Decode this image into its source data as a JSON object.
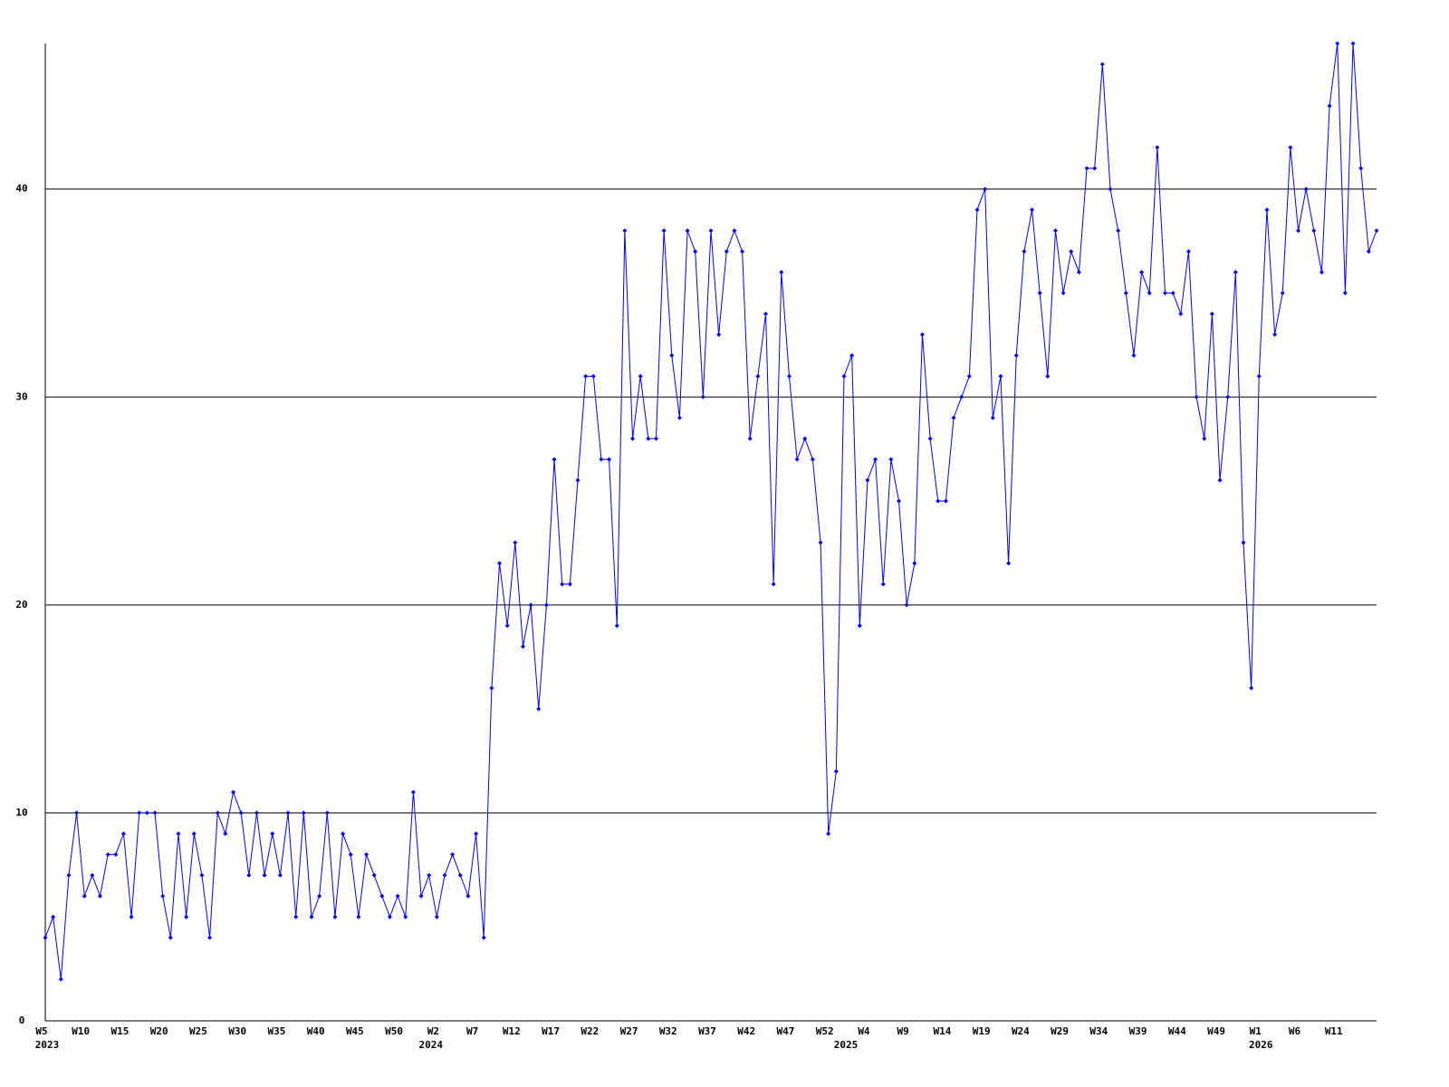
{
  "chart_data": {
    "type": "line",
    "categories": [
      "W5",
      null,
      null,
      null,
      null,
      "W10",
      null,
      null,
      null,
      null,
      "W15",
      null,
      null,
      null,
      null,
      "W20",
      null,
      null,
      null,
      null,
      "W25",
      null,
      null,
      null,
      null,
      "W30",
      null,
      null,
      null,
      null,
      "W35",
      null,
      null,
      null,
      null,
      "W40",
      null,
      null,
      null,
      null,
      "W45",
      null,
      null,
      null,
      null,
      "W50",
      null,
      null,
      null,
      null,
      "W2",
      null,
      null,
      null,
      null,
      "W7",
      null,
      null,
      null,
      null,
      "W12",
      null,
      null,
      null,
      null,
      "W17",
      null,
      null,
      null,
      null,
      "W22",
      null,
      null,
      null,
      null,
      "W27",
      null,
      null,
      null,
      null,
      "W32",
      null,
      null,
      null,
      null,
      "W37",
      null,
      null,
      null,
      null,
      "W42",
      null,
      null,
      null,
      null,
      "W47",
      null,
      null,
      null,
      null,
      "W52",
      null,
      null,
      null,
      null,
      "W4",
      null,
      null,
      null,
      null,
      "W9",
      null,
      null,
      null,
      null,
      "W14",
      null,
      null,
      null,
      null,
      "W19",
      null,
      null,
      null,
      null,
      "W24",
      null,
      null,
      null,
      null,
      "W29",
      null,
      null,
      null,
      null,
      "W34",
      null,
      null,
      null,
      null,
      "W39",
      null,
      null,
      null,
      null,
      "W44",
      null,
      null,
      null,
      null,
      "W49",
      null,
      null,
      null,
      null,
      "W1",
      null,
      null,
      null,
      null,
      "W6",
      null,
      null,
      null,
      null,
      "W11",
      null,
      null,
      null,
      null,
      null
    ],
    "years": [
      "2023",
      null,
      null,
      null,
      null,
      null,
      null,
      null,
      null,
      null,
      null,
      null,
      null,
      null,
      null,
      null,
      null,
      null,
      null,
      null,
      null,
      null,
      null,
      null,
      null,
      null,
      null,
      null,
      null,
      null,
      null,
      null,
      null,
      null,
      null,
      null,
      null,
      null,
      null,
      null,
      null,
      null,
      null,
      null,
      null,
      null,
      null,
      null,
      null,
      "2024",
      null,
      null,
      null,
      null,
      null,
      null,
      null,
      null,
      null,
      null,
      null,
      null,
      null,
      null,
      null,
      null,
      null,
      null,
      null,
      null,
      null,
      null,
      null,
      null,
      null,
      null,
      null,
      null,
      null,
      null,
      null,
      null,
      null,
      null,
      null,
      null,
      null,
      null,
      null,
      null,
      null,
      null,
      null,
      null,
      null,
      null,
      null,
      null,
      null,
      null,
      null,
      null,
      "2025",
      null,
      null,
      null,
      null,
      null,
      null,
      null,
      null,
      null,
      null,
      null,
      null,
      null,
      null,
      null,
      null,
      null,
      null,
      null,
      null,
      null,
      null,
      null,
      null,
      null,
      null,
      null,
      null,
      null,
      null,
      null,
      null,
      null,
      null,
      null,
      null,
      null,
      null,
      null,
      null,
      null,
      null,
      null,
      null,
      null,
      null,
      null,
      null,
      null,
      null,
      null,
      null,
      "2026",
      null,
      null,
      null,
      null,
      null,
      null,
      null,
      null,
      null,
      null,
      null,
      null,
      null,
      null,
      null
    ],
    "values": [
      4,
      5,
      2,
      7,
      10,
      6,
      7,
      6,
      8,
      8,
      9,
      5,
      10,
      10,
      10,
      6,
      4,
      9,
      5,
      9,
      7,
      4,
      10,
      9,
      11,
      10,
      7,
      10,
      7,
      9,
      7,
      10,
      5,
      10,
      5,
      6,
      10,
      5,
      9,
      8,
      5,
      8,
      7,
      6,
      5,
      6,
      5,
      11,
      6,
      7,
      5,
      7,
      8,
      7,
      6,
      9,
      4,
      16,
      22,
      19,
      23,
      18,
      20,
      15,
      20,
      27,
      21,
      21,
      26,
      31,
      31,
      27,
      27,
      19,
      38,
      28,
      31,
      28,
      28,
      38,
      32,
      29,
      38,
      37,
      30,
      38,
      33,
      37,
      38,
      37,
      28,
      31,
      34,
      21,
      36,
      31,
      27,
      28,
      27,
      23,
      9,
      12,
      31,
      32,
      19,
      26,
      27,
      21,
      27,
      25,
      20,
      22,
      33,
      28,
      25,
      25,
      29,
      30,
      31,
      39,
      40,
      29,
      31,
      22,
      32,
      37,
      39,
      35,
      31,
      38,
      35,
      37,
      36,
      41,
      41,
      46,
      40,
      38,
      35,
      32,
      36,
      35,
      42,
      35,
      35,
      34,
      37,
      30,
      28,
      34,
      26,
      30,
      36,
      23,
      16,
      31,
      39,
      33,
      35,
      42,
      38,
      40,
      38,
      36,
      44,
      47,
      35,
      47,
      41,
      37,
      38
    ],
    "color": "#0000ff",
    "ylim": [
      0,
      47
    ],
    "yticks": [
      0,
      10,
      20,
      30,
      40
    ],
    "grid": true
  }
}
